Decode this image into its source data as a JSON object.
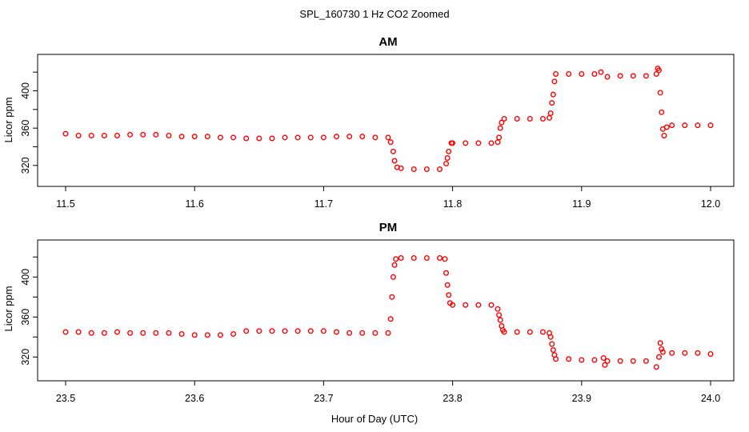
{
  "figure": {
    "title": "SPL_160730  1 Hz CO2 Zoomed",
    "xlabel": "Hour of Day (UTC)",
    "marker_color": "#ff0000"
  },
  "chart_data": [
    {
      "type": "scatter",
      "title": "AM",
      "xlabel": "",
      "ylabel": "Licor ppm",
      "xlim": [
        11.5,
        12.0
      ],
      "ylim": [
        307,
        427
      ],
      "xticks": [
        "11.5",
        "11.6",
        "11.7",
        "11.8",
        "11.9",
        "12.0"
      ],
      "yticks": [
        "320",
        "360",
        "400"
      ],
      "grid": false,
      "legend": "none",
      "series": [
        {
          "values": [
            [
              11.5,
              354
            ],
            [
              11.51,
              352
            ],
            [
              11.52,
              352
            ],
            [
              11.53,
              352
            ],
            [
              11.54,
              352
            ],
            [
              11.55,
              353
            ],
            [
              11.56,
              353
            ],
            [
              11.57,
              353
            ],
            [
              11.58,
              352
            ],
            [
              11.59,
              351
            ],
            [
              11.6,
              351
            ],
            [
              11.61,
              351
            ],
            [
              11.62,
              350
            ],
            [
              11.63,
              350
            ],
            [
              11.64,
              349
            ],
            [
              11.65,
              349
            ],
            [
              11.66,
              349
            ],
            [
              11.67,
              350
            ],
            [
              11.68,
              350
            ],
            [
              11.69,
              350
            ],
            [
              11.7,
              350
            ],
            [
              11.71,
              351
            ],
            [
              11.72,
              351
            ],
            [
              11.73,
              351
            ],
            [
              11.74,
              350
            ],
            [
              11.75,
              350
            ],
            [
              11.752,
              345
            ],
            [
              11.754,
              335
            ],
            [
              11.755,
              325
            ],
            [
              11.757,
              318
            ],
            [
              11.76,
              317
            ],
            [
              11.77,
              316
            ],
            [
              11.78,
              316
            ],
            [
              11.79,
              316
            ],
            [
              11.795,
              322
            ],
            [
              11.796,
              328
            ],
            [
              11.797,
              335
            ],
            [
              11.799,
              344
            ],
            [
              11.8,
              344
            ],
            [
              11.81,
              344
            ],
            [
              11.82,
              344
            ],
            [
              11.83,
              344
            ],
            [
              11.835,
              345
            ],
            [
              11.836,
              350
            ],
            [
              11.837,
              360
            ],
            [
              11.838,
              366
            ],
            [
              11.84,
              370
            ],
            [
              11.85,
              370
            ],
            [
              11.86,
              370
            ],
            [
              11.87,
              370
            ],
            [
              11.875,
              371
            ],
            [
              11.876,
              376
            ],
            [
              11.877,
              387
            ],
            [
              11.878,
              396
            ],
            [
              11.879,
              410
            ],
            [
              11.88,
              418
            ],
            [
              11.89,
              418
            ],
            [
              11.9,
              418
            ],
            [
              11.91,
              418
            ],
            [
              11.915,
              420
            ],
            [
              11.92,
              415
            ],
            [
              11.93,
              416
            ],
            [
              11.94,
              416
            ],
            [
              11.95,
              416
            ],
            [
              11.958,
              418
            ],
            [
              11.959,
              424
            ],
            [
              11.96,
              422
            ],
            [
              11.961,
              398
            ],
            [
              11.962,
              377
            ],
            [
              11.963,
              359
            ],
            [
              11.964,
              352
            ],
            [
              11.966,
              361
            ],
            [
              11.97,
              363
            ],
            [
              11.98,
              363
            ],
            [
              11.99,
              363
            ],
            [
              12.0,
              363
            ]
          ]
        }
      ]
    },
    {
      "type": "scatter",
      "title": "PM",
      "xlabel": "",
      "ylabel": "Licor ppm",
      "xlim": [
        23.5,
        24.0
      ],
      "ylim": [
        305,
        425
      ],
      "xticks": [
        "23.5",
        "23.6",
        "23.7",
        "23.8",
        "23.9",
        "24.0"
      ],
      "yticks": [
        "320",
        "360",
        "400"
      ],
      "grid": false,
      "legend": "none",
      "series": [
        {
          "values": [
            [
              23.5,
              345
            ],
            [
              23.51,
              345
            ],
            [
              23.52,
              344
            ],
            [
              23.53,
              344
            ],
            [
              23.54,
              345
            ],
            [
              23.55,
              344
            ],
            [
              23.56,
              344
            ],
            [
              23.57,
              344
            ],
            [
              23.58,
              344
            ],
            [
              23.59,
              343
            ],
            [
              23.6,
              342
            ],
            [
              23.61,
              342
            ],
            [
              23.62,
              342
            ],
            [
              23.63,
              343
            ],
            [
              23.64,
              346
            ],
            [
              23.65,
              346
            ],
            [
              23.66,
              346
            ],
            [
              23.67,
              346
            ],
            [
              23.68,
              346
            ],
            [
              23.69,
              346
            ],
            [
              23.7,
              346
            ],
            [
              23.71,
              345
            ],
            [
              23.72,
              344
            ],
            [
              23.73,
              344
            ],
            [
              23.74,
              344
            ],
            [
              23.75,
              344
            ],
            [
              23.752,
              358
            ],
            [
              23.753,
              380
            ],
            [
              23.754,
              400
            ],
            [
              23.755,
              412
            ],
            [
              23.756,
              418
            ],
            [
              23.76,
              419
            ],
            [
              23.77,
              419
            ],
            [
              23.78,
              419
            ],
            [
              23.79,
              419
            ],
            [
              23.794,
              418
            ],
            [
              23.795,
              404
            ],
            [
              23.796,
              392
            ],
            [
              23.797,
              382
            ],
            [
              23.798,
              374
            ],
            [
              23.8,
              372
            ],
            [
              23.81,
              372
            ],
            [
              23.82,
              372
            ],
            [
              23.83,
              372
            ],
            [
              23.835,
              368
            ],
            [
              23.836,
              362
            ],
            [
              23.837,
              357
            ],
            [
              23.838,
              351
            ],
            [
              23.839,
              347
            ],
            [
              23.84,
              345
            ],
            [
              23.85,
              345
            ],
            [
              23.86,
              345
            ],
            [
              23.87,
              345
            ],
            [
              23.875,
              344
            ],
            [
              23.876,
              340
            ],
            [
              23.877,
              333
            ],
            [
              23.878,
              327
            ],
            [
              23.879,
              322
            ],
            [
              23.88,
              318
            ],
            [
              23.89,
              318
            ],
            [
              23.9,
              317
            ],
            [
              23.91,
              317
            ],
            [
              23.917,
              319
            ],
            [
              23.918,
              312
            ],
            [
              23.92,
              316
            ],
            [
              23.93,
              316
            ],
            [
              23.94,
              316
            ],
            [
              23.95,
              316
            ],
            [
              23.958,
              310
            ],
            [
              23.96,
              320
            ],
            [
              23.961,
              334
            ],
            [
              23.962,
              328
            ],
            [
              23.963,
              325
            ],
            [
              23.97,
              324
            ],
            [
              23.98,
              324
            ],
            [
              23.99,
              324
            ],
            [
              24.0,
              323
            ]
          ]
        }
      ]
    }
  ]
}
